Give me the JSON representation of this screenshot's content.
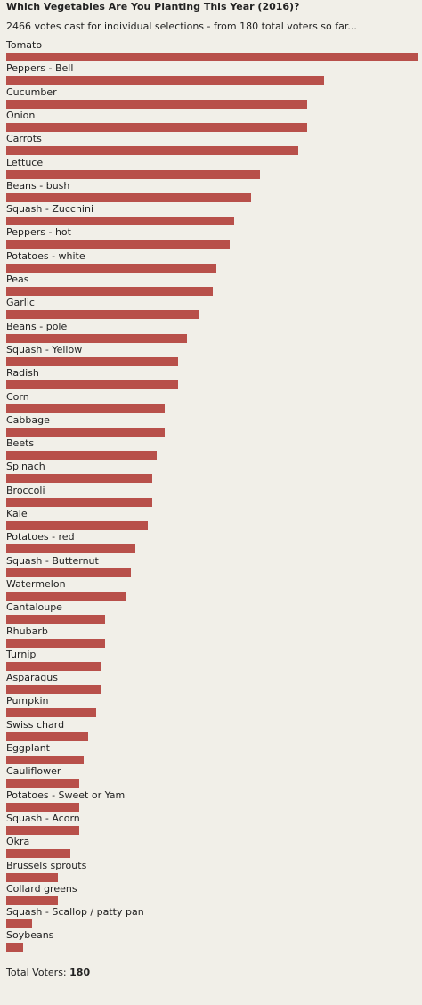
{
  "chart_data": {
    "type": "bar",
    "orientation": "horizontal",
    "title": "Which Vegetables Are You Planting This Year (2016)?",
    "subtitle": "2466 votes cast for individual selections - from 180 total voters so far...",
    "categories": [
      "Tomato",
      "Peppers - Bell",
      "Cucumber",
      "Onion",
      "Carrots",
      "Lettuce",
      "Beans - bush",
      "Squash - Zucchini",
      "Peppers - hot",
      "Potatoes - white",
      "Peas",
      "Garlic",
      "Beans - pole",
      "Squash - Yellow",
      "Radish",
      "Corn",
      "Cabbage",
      "Beets",
      "Spinach",
      "Broccoli",
      "Kale",
      "Potatoes - red",
      "Squash - Butternut",
      "Watermelon",
      "Cantaloupe",
      "Rhubarb",
      "Turnip",
      "Asparagus",
      "Pumpkin",
      "Swiss chard",
      "Eggplant",
      "Cauliflower",
      "Potatoes - Sweet or Yam",
      "Squash - Acorn",
      "Okra",
      "Brussels sprouts",
      "Collard greens",
      "Squash - Scallop / patty pan",
      "Soybeans"
    ],
    "values": [
      96,
      74,
      70,
      70,
      68,
      59,
      57,
      53,
      52,
      49,
      48,
      45,
      42,
      40,
      40,
      37,
      37,
      35,
      34,
      34,
      33,
      30,
      29,
      28,
      23,
      23,
      22,
      22,
      21,
      19,
      18,
      17,
      17,
      17,
      15,
      12,
      12,
      6,
      4
    ],
    "xlim": [
      0,
      96
    ],
    "grid": false,
    "legend": "none",
    "bar_color": "#b8504a"
  },
  "footer": {
    "total_label": "Total Voters:",
    "total_value": "180"
  }
}
